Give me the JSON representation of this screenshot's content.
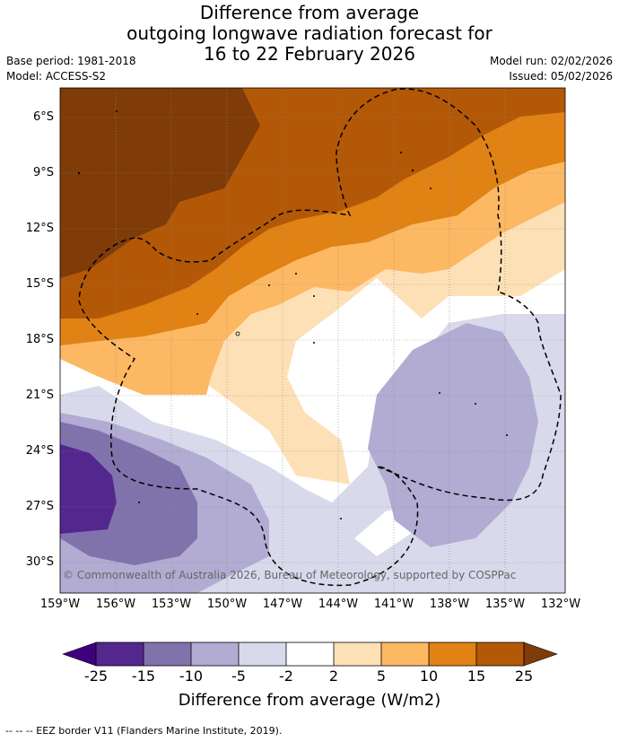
{
  "title": {
    "line1": "Difference from average",
    "line2": "outgoing longwave radiation forecast for",
    "line3": "16 to 22 February 2026"
  },
  "meta": {
    "base_period": "Base period: 1981-2018",
    "model": "Model: ACCESS-S2",
    "model_run": "Model run: 02/02/2026",
    "issued": "Issued: 05/02/2026"
  },
  "map": {
    "lat_labels": [
      "6°S",
      "9°S",
      "12°S",
      "15°S",
      "18°S",
      "21°S",
      "24°S",
      "27°S",
      "30°S"
    ],
    "lon_labels": [
      "159°W",
      "156°W",
      "153°W",
      "150°W",
      "147°W",
      "144°W",
      "141°W",
      "138°W",
      "135°W",
      "132°W"
    ],
    "copyright": "© Commonwealth of Australia 2026, Bureau of Meteorology, supported by COSPPac",
    "colors": {
      "n25": "#3f007d",
      "n15": "#54278f",
      "n10": "#8073ac",
      "n5": "#b2abd2",
      "n2": "#d8daeb",
      "zero": "#ffffff",
      "p2": "#fee0b6",
      "p5": "#fdb863",
      "p10": "#e08214",
      "p15": "#b35806",
      "p25": "#7f3b08"
    }
  },
  "colorbar": {
    "ticks": [
      "-25",
      "-15",
      "-10",
      "-5",
      "-2",
      "2",
      "5",
      "10",
      "15",
      "25"
    ],
    "label": "Difference from average (W/m2)"
  },
  "footer": "--  --  -- EEZ border V11 (Flanders Marine Institute, 2019)."
}
